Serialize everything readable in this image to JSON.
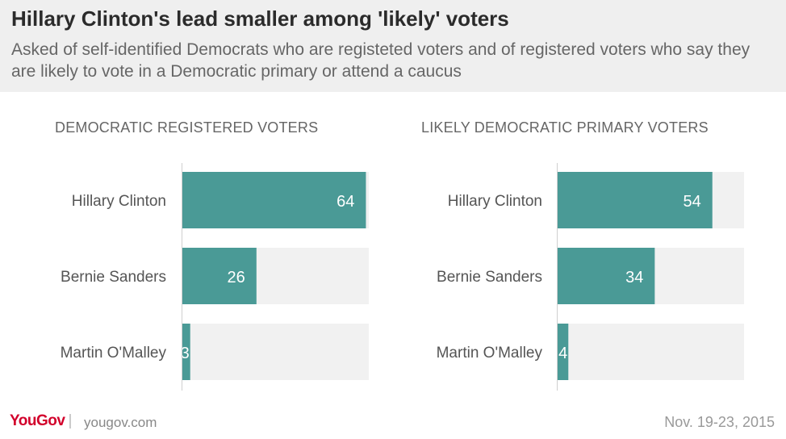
{
  "header": {
    "title": "Hillary Clinton's lead smaller among 'likely' voters",
    "subtitle": "Asked of self-identified Democrats who are registeted voters and of registered voters who say they are likely to vote in a Democratic primary or attend a caucus"
  },
  "chart_data": [
    {
      "type": "bar",
      "orientation": "horizontal",
      "title": "DEMOCRATIC REGISTERED  VOTERS",
      "categories": [
        "Hillary Clinton",
        "Bernie Sanders",
        "Martin O'Malley"
      ],
      "values": [
        64,
        26,
        3
      ],
      "xlim": [
        0,
        65
      ],
      "bar_color": "#4a9a96",
      "track_color": "#f1f1f1"
    },
    {
      "type": "bar",
      "orientation": "horizontal",
      "title": "LIKELY DEMOCRATIC PRIMARY VOTERS",
      "categories": [
        "Hillary Clinton",
        "Bernie Sanders",
        "Martin O'Malley"
      ],
      "values": [
        54,
        34,
        4
      ],
      "xlim": [
        0,
        65
      ],
      "bar_color": "#4a9a96",
      "track_color": "#f1f1f1"
    }
  ],
  "footer": {
    "brand": "YouGov",
    "separator": "|",
    "url": "yougov.com",
    "date": "Nov. 19-23, 2015"
  }
}
